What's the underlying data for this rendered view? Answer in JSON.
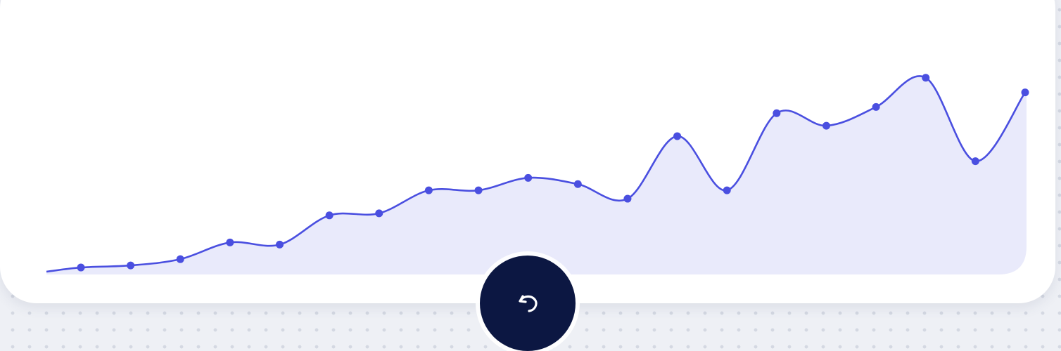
{
  "colors": {
    "line": "#4a4fe0",
    "fill": "#e9eafb",
    "fab_background": "#0c1742",
    "fab_icon": "#ffffff"
  },
  "fab": {
    "icon": "undo-icon"
  },
  "chart_data": {
    "type": "area",
    "title": "",
    "xlabel": "",
    "ylabel": "",
    "grid": false,
    "smooth": true,
    "ylim": [
      0,
      100
    ],
    "x": [
      0,
      1,
      2,
      3,
      4,
      5,
      6,
      7,
      8,
      9,
      10,
      11,
      12,
      13,
      14,
      15,
      16,
      17,
      18,
      19
    ],
    "series": [
      {
        "values": [
          2,
          3,
          6,
          14,
          13,
          27,
          28,
          39,
          39,
          45,
          42,
          35,
          65,
          39,
          76,
          70,
          79,
          93,
          53,
          86
        ]
      }
    ]
  }
}
